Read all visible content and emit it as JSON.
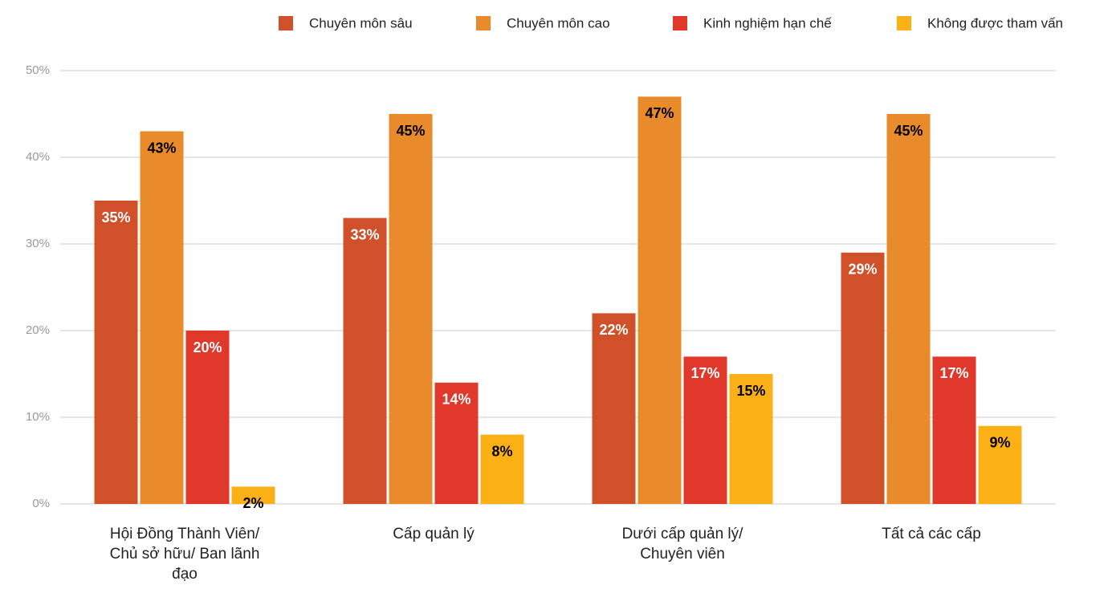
{
  "chart_data": {
    "type": "bar",
    "categories": [
      "Hội Đồng Thành Viên/ Chủ sở hữu/ Ban lãnh đạo",
      "Cấp quản lý",
      "Dưới cấp quản lý/ Chuyên viên",
      "Tất cả các cấp"
    ],
    "series": [
      {
        "name": "Chuyên môn sâu",
        "color": "#d0502a",
        "label_color": "#ffffff",
        "values": [
          35,
          33,
          22,
          29
        ],
        "value_labels": [
          "35%",
          "33%",
          "22%",
          "29%"
        ]
      },
      {
        "name": "Chuyên môn cao",
        "color": "#e98b2a",
        "label_color": "#000000",
        "values": [
          43,
          45,
          47,
          45
        ],
        "value_labels": [
          "43%",
          "45%",
          "47%",
          "45%"
        ]
      },
      {
        "name": "Kinh nghiệm hạn chế",
        "color": "#e0382a",
        "label_color": "#ffffff",
        "values": [
          20,
          14,
          17,
          17
        ],
        "value_labels": [
          "20%",
          "14%",
          "17%",
          "17%"
        ]
      },
      {
        "name": "Không được tham vấn",
        "color": "#fbb116",
        "label_color": "#000000",
        "values": [
          2,
          8,
          15,
          9
        ],
        "value_labels": [
          "2%",
          "8%",
          "15%",
          "9%"
        ]
      }
    ],
    "ylim": [
      0,
      50
    ],
    "yticks": [
      {
        "value": 0,
        "label": "0%"
      },
      {
        "value": 10,
        "label": "10%"
      },
      {
        "value": 20,
        "label": "20%"
      },
      {
        "value": 30,
        "label": "30%"
      },
      {
        "value": 40,
        "label": "40%"
      },
      {
        "value": 50,
        "label": "50%"
      }
    ],
    "grid": true,
    "legend": "top"
  }
}
